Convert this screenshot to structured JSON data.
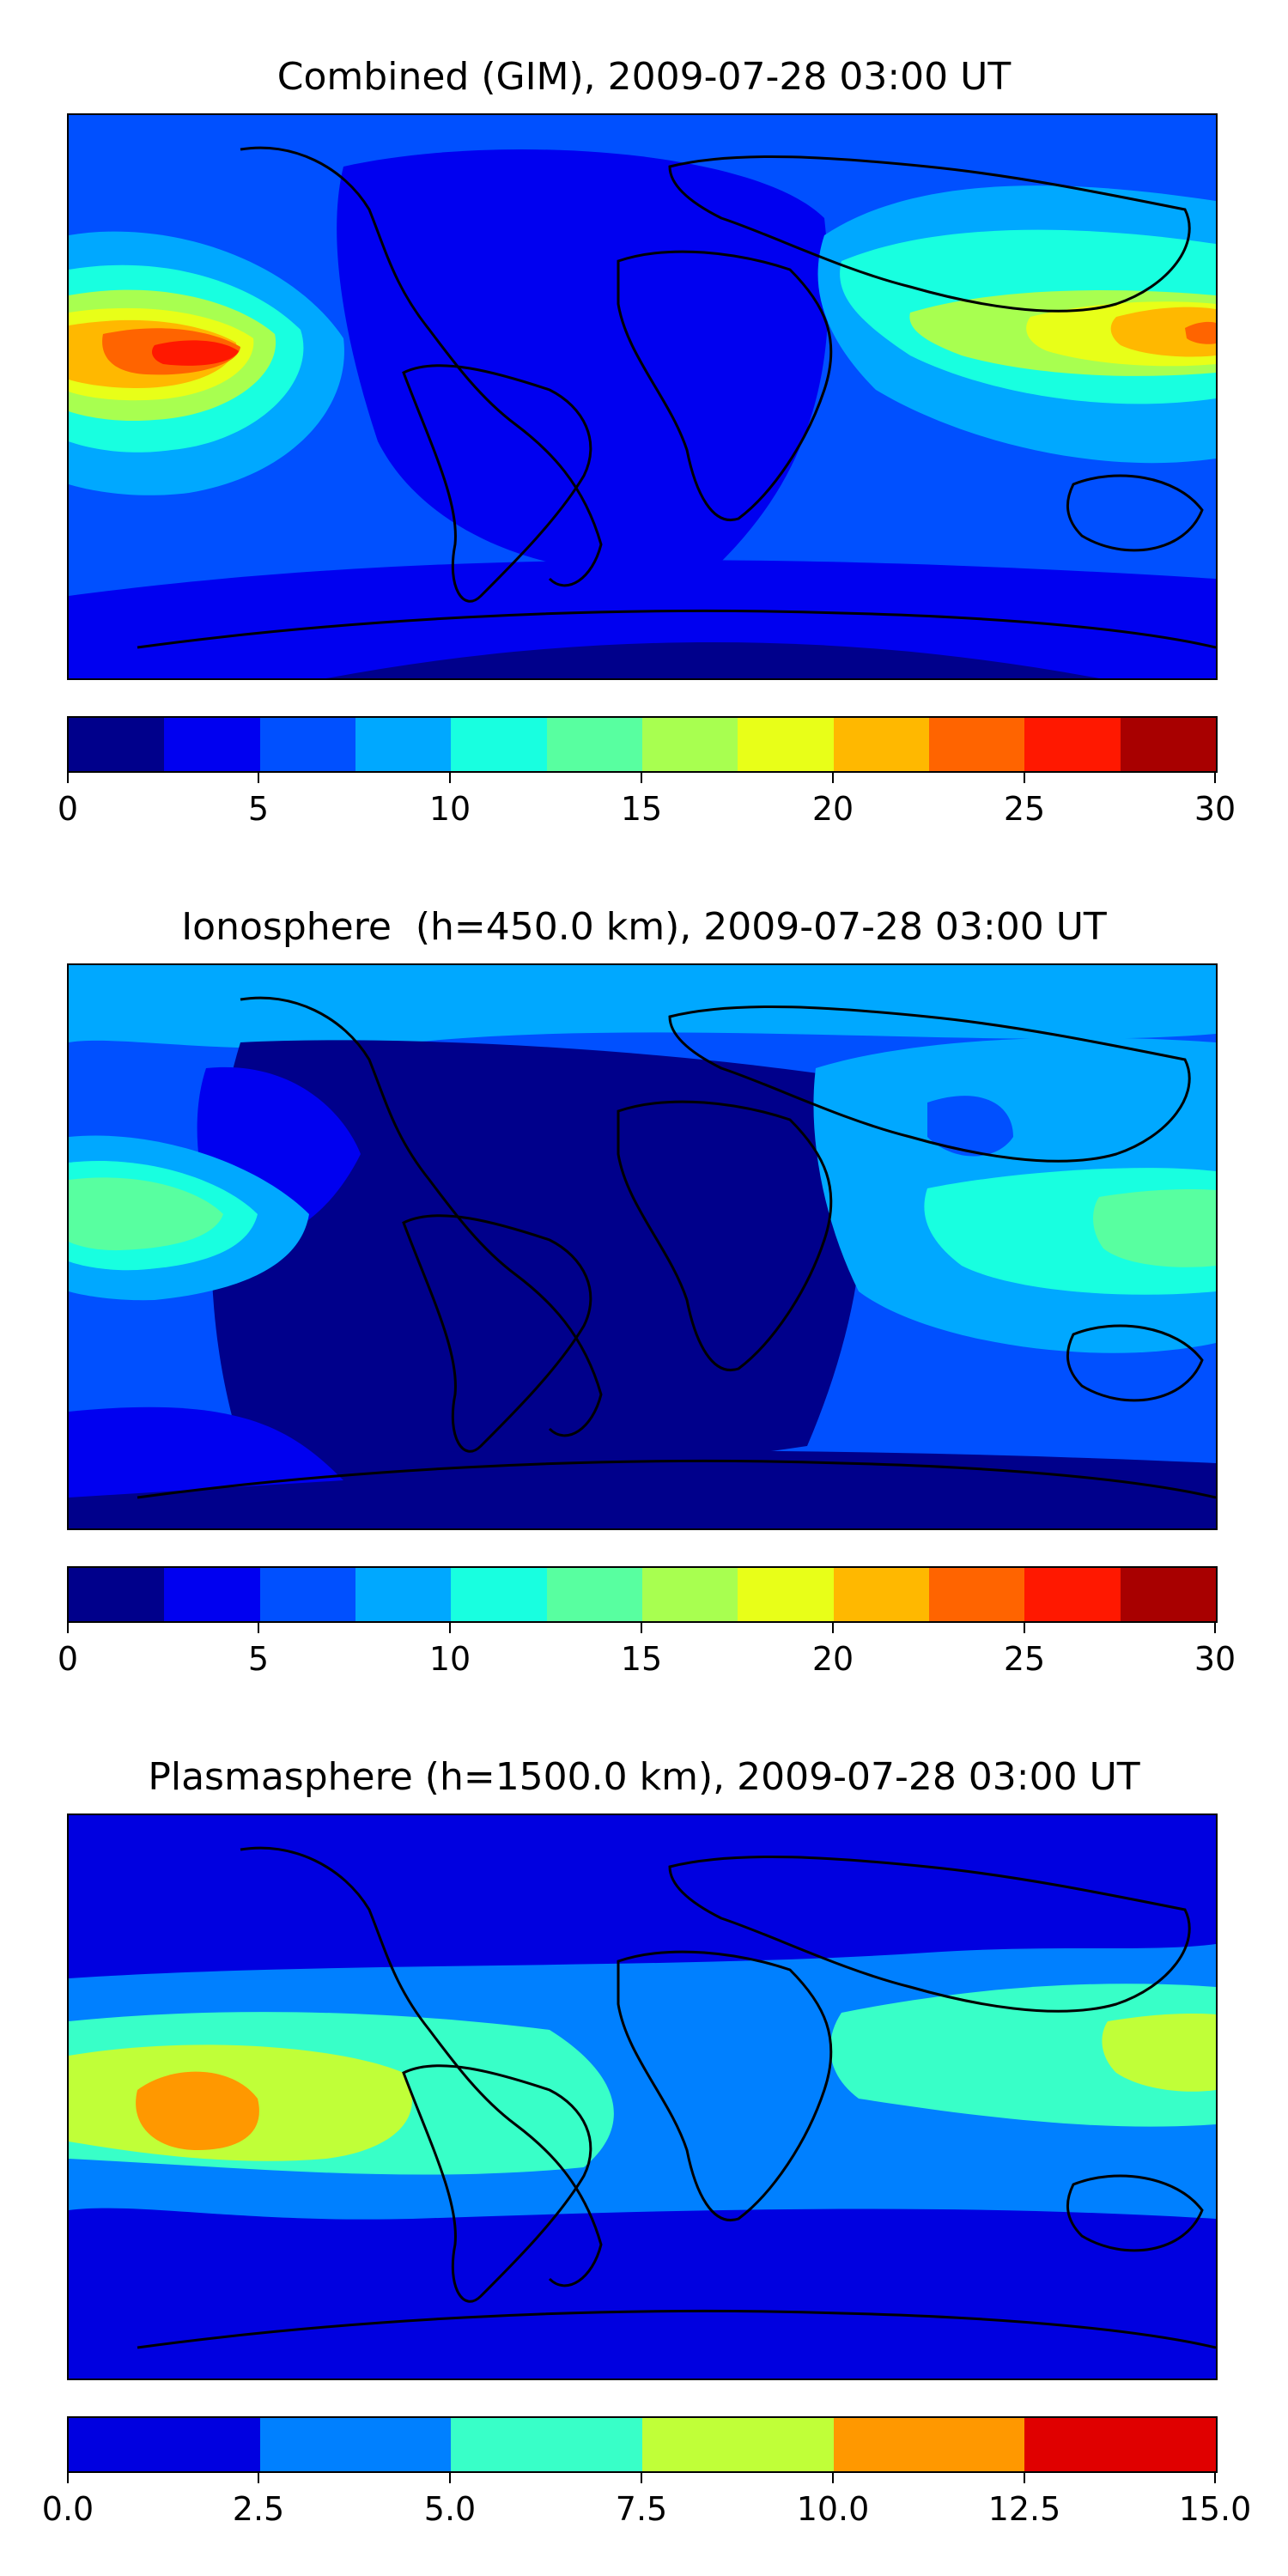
{
  "panels": [
    {
      "title": "Combined (GIM), 2009-07-28 03:00 UT",
      "colors": [
        "#00008b",
        "#0000f0",
        "#0050ff",
        "#00a8ff",
        "#18ffe0",
        "#58ffa0",
        "#a8ff50",
        "#e8ff18",
        "#ffb800",
        "#ff6400",
        "#ff1800",
        "#a80000"
      ],
      "ticks": [
        "0",
        "5",
        "10",
        "15",
        "20",
        "25",
        "30"
      ],
      "range": [
        0,
        30
      ]
    },
    {
      "title": "Ionosphere  (h=450.0 km), 2009-07-28 03:00 UT",
      "colors": [
        "#00008b",
        "#0000f0",
        "#0050ff",
        "#00a8ff",
        "#18ffe0",
        "#58ffa0",
        "#a8ff50",
        "#e8ff18",
        "#ffb800",
        "#ff6400",
        "#ff1800",
        "#a80000"
      ],
      "ticks": [
        "0",
        "5",
        "10",
        "15",
        "20",
        "25",
        "30"
      ],
      "range": [
        0,
        30
      ]
    },
    {
      "title": "Plasmasphere (h=1500.0 km), 2009-07-28 03:00 UT",
      "colors": [
        "#0000e0",
        "#0080ff",
        "#38ffc8",
        "#c0ff38",
        "#ff9800",
        "#e00000"
      ],
      "ticks": [
        "0.0",
        "2.5",
        "5.0",
        "7.5",
        "10.0",
        "12.5",
        "15.0"
      ],
      "range": [
        0,
        15
      ]
    }
  ]
}
